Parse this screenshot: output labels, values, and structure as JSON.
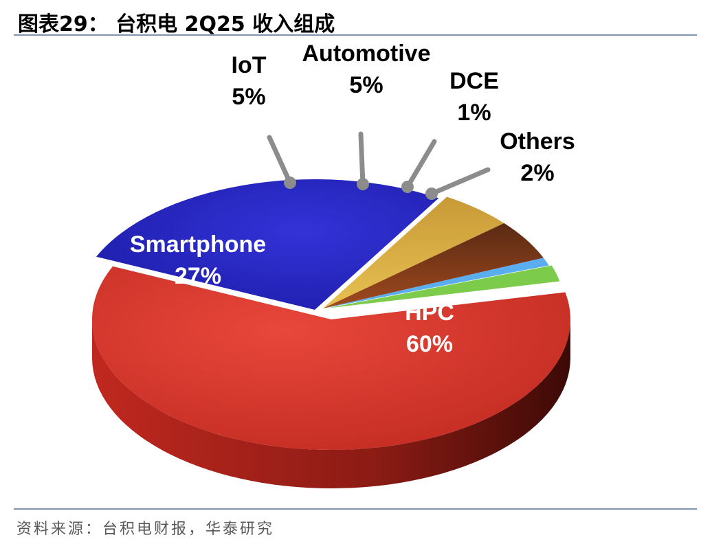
{
  "header": {
    "title": "图表29： 台积电 2Q25 收入组成"
  },
  "footer": {
    "source": "资料来源：台积电财报，华泰研究"
  },
  "chart_data": {
    "type": "pie",
    "title": "图表29： 台积电 2Q25 收入组成",
    "slices": [
      {
        "name": "HPC",
        "value": 60,
        "label": "60%",
        "color": "#d9342a"
      },
      {
        "name": "Smartphone",
        "value": 27,
        "label": "27%",
        "color": "#2323c8"
      },
      {
        "name": "IoT",
        "value": 5,
        "label": "5%",
        "color": "#d4a73a"
      },
      {
        "name": "Automotive",
        "value": 5,
        "label": "5%",
        "color": "#7a3a1a"
      },
      {
        "name": "DCE",
        "value": 1,
        "label": "1%",
        "color": "#5aaef0"
      },
      {
        "name": "Others",
        "value": 2,
        "label": "2%",
        "color": "#7ccb4a"
      }
    ],
    "unit": "%",
    "style": "3d-exploded-pie"
  }
}
